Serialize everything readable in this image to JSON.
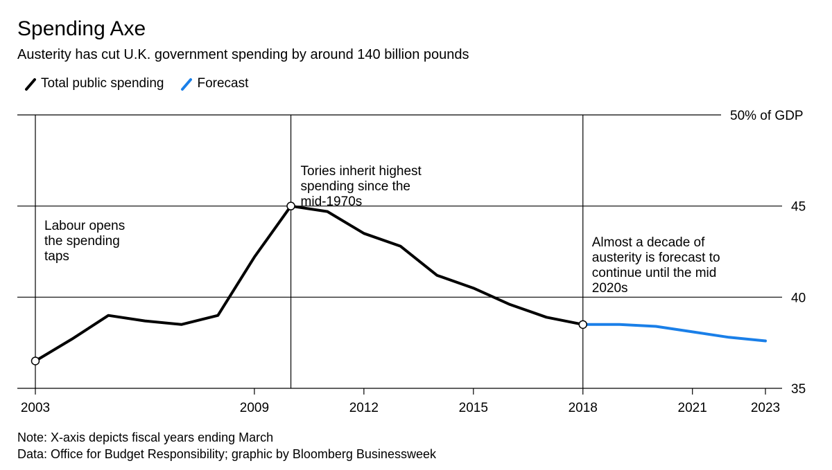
{
  "header": {
    "title": "Spending Axe",
    "subtitle": "Austerity has cut U.K. government spending by around 140 billion pounds"
  },
  "legend": [
    {
      "label": "Total public spending",
      "color": "#000000"
    },
    {
      "label": "Forecast",
      "color": "#1a7fe8"
    }
  ],
  "footer": {
    "note": "Note: X-axis depicts fiscal years ending March",
    "source": "Data: Office for Budget Responsibility; graphic by Bloomberg Businessweek"
  },
  "chart_data": {
    "type": "line",
    "xlim": [
      2003,
      2023
    ],
    "ylim": [
      35,
      50
    ],
    "x_ticks": [
      2003,
      2009,
      2012,
      2015,
      2018,
      2021,
      2023
    ],
    "y_ticks": [
      {
        "value": 35,
        "label": "35"
      },
      {
        "value": 40,
        "label": "40"
      },
      {
        "value": 45,
        "label": "45"
      },
      {
        "value": 50,
        "label": "50% of GDP"
      }
    ],
    "vertical_markers": [
      2003,
      2010,
      2018
    ],
    "series": [
      {
        "name": "Total public spending",
        "color": "#000000",
        "x": [
          2003,
          2004,
          2005,
          2006,
          2007,
          2008,
          2009,
          2010,
          2011,
          2012,
          2013,
          2014,
          2015,
          2016,
          2017,
          2018
        ],
        "y": [
          36.5,
          37.7,
          39.0,
          38.7,
          38.5,
          39.0,
          42.2,
          45.0,
          44.7,
          43.5,
          42.8,
          41.2,
          40.5,
          39.6,
          38.9,
          38.5
        ]
      },
      {
        "name": "Forecast",
        "color": "#1a7fe8",
        "x": [
          2018,
          2019,
          2020,
          2021,
          2022,
          2023
        ],
        "y": [
          38.5,
          38.5,
          38.4,
          38.1,
          37.8,
          37.6
        ]
      }
    ],
    "highlight_points": [
      {
        "x": 2003,
        "y": 36.5
      },
      {
        "x": 2010,
        "y": 45.0
      },
      {
        "x": 2018,
        "y": 38.5
      }
    ],
    "annotations": [
      {
        "x": 2003,
        "y": 45,
        "lines": [
          "Labour opens",
          "the spending",
          "taps"
        ]
      },
      {
        "x": 2010,
        "y": 50,
        "lines": [
          "Tories inherit highest",
          "spending since the",
          "mid-1970s"
        ]
      },
      {
        "x": 2018,
        "y": 45,
        "lines": [
          "Almost a decade of",
          "austerity is forecast to",
          "continue until the mid",
          "2020s"
        ]
      }
    ]
  }
}
